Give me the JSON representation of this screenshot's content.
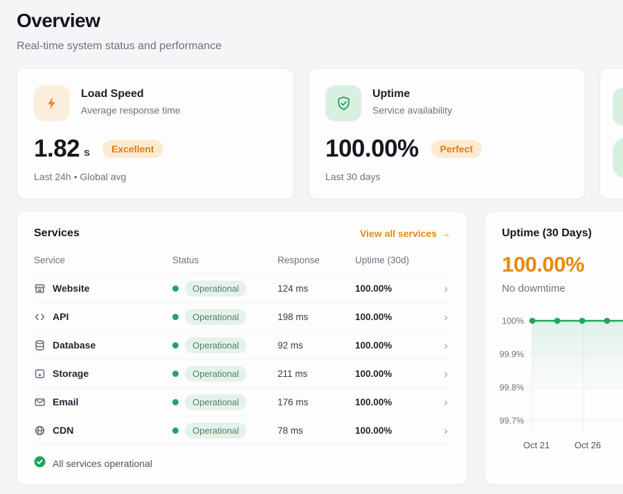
{
  "page": {
    "title": "Overview",
    "subtitle": "Real-time system status and performance"
  },
  "cards": {
    "load_speed": {
      "icon": "bolt-icon",
      "title": "Load Speed",
      "subtitle": "Average response time",
      "value": "1.82",
      "unit": "s",
      "badge": "Excellent",
      "caption": "Last 24h • Global avg"
    },
    "uptime": {
      "icon": "shield-check-icon",
      "title": "Uptime",
      "subtitle": "Service availability",
      "value": "100.00%",
      "badge": "Perfect",
      "caption": "Last 30 days"
    }
  },
  "services_panel": {
    "title": "Services",
    "link_label": "View all services",
    "link_arrow": "→",
    "columns": [
      "Service",
      "Status",
      "Response",
      "Uptime (30d)"
    ],
    "rows": [
      {
        "icon": "storefront",
        "name": "Website",
        "status": "Operational",
        "response": "124 ms",
        "uptime": "100.00%"
      },
      {
        "icon": "api",
        "name": "API",
        "status": "Operational",
        "response": "198 ms",
        "uptime": "100.00%"
      },
      {
        "icon": "database",
        "name": "Database",
        "status": "Operational",
        "response": "92 ms",
        "uptime": "100.00%"
      },
      {
        "icon": "storage",
        "name": "Storage",
        "status": "Operational",
        "response": "211 ms",
        "uptime": "100.00%"
      },
      {
        "icon": "email",
        "name": "Email",
        "status": "Operational",
        "response": "176 ms",
        "uptime": "100.00%"
      },
      {
        "icon": "globe",
        "name": "CDN",
        "status": "Operational",
        "response": "78 ms",
        "uptime": "100.00%"
      }
    ],
    "chevron": "›",
    "footer": "All services operational"
  },
  "uptime_panel": {
    "title": "Uptime (30 Days)",
    "value": "100.00%",
    "subtitle": "No dowmtime"
  },
  "chart_data": {
    "type": "line",
    "title": "Uptime (30 Days)",
    "y_ticks": [
      "100%",
      "99.9%",
      "99.8%",
      "99.7%"
    ],
    "x_ticks": [
      "Oct 21",
      "Oct 26"
    ],
    "ylim": [
      99.65,
      100.05
    ],
    "series": [
      {
        "name": "Uptime",
        "values": [
          100,
          100,
          100,
          100,
          100,
          100,
          100,
          100
        ]
      }
    ],
    "grid": true,
    "legend_position": "none",
    "line_color": "#21a45e",
    "area_fill": "fade-green"
  },
  "colors": {
    "accent_orange": "#e8890c",
    "orange_badge_bg": "#fcebd2",
    "orange_badge_text": "#e07c12",
    "orange_tile_bg": "#fbeede",
    "bolt_orange": "#f0882a",
    "green": "#21a45e",
    "green_tile_bg": "#d9efe2",
    "status_pill_bg": "#e4f3ea",
    "status_pill_text": "#567d68",
    "page_bg": "#f5f5f7",
    "card_bg": "#fdfdfe",
    "grid_line": "#ececf0"
  }
}
